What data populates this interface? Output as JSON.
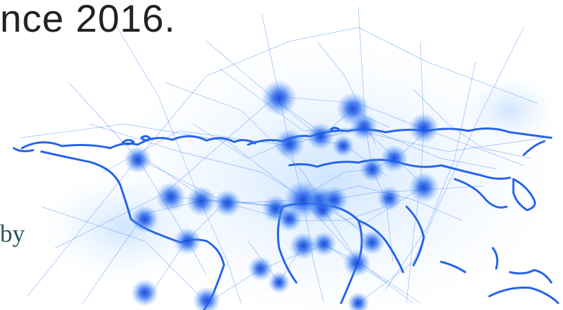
{
  "hero": {
    "headline": "nce 2016.",
    "side_text": "by"
  },
  "map_graphic": {
    "icon": "world-network-map",
    "accent_color": "#2563eb",
    "glow_color": "#3b82f6"
  }
}
